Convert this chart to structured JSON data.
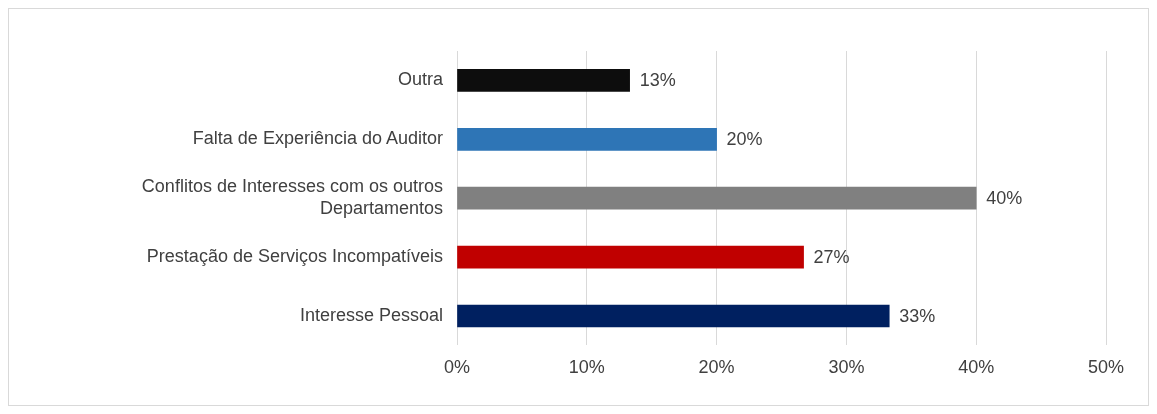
{
  "chart_data": {
    "type": "bar",
    "orientation": "horizontal",
    "categories": [
      "Outra",
      "Falta de Experiência do Auditor",
      "Conflitos de Interesses com os outros Departamentos",
      "Prestação de Serviços Incompatíveis",
      "Interesse Pessoal"
    ],
    "values": [
      13.3,
      20,
      40,
      26.7,
      33.3
    ],
    "value_labels": [
      "13%",
      "20%",
      "40%",
      "27%",
      "33%"
    ],
    "colors": [
      "#0d0d0d",
      "#2e75b6",
      "#808080",
      "#c00000",
      "#002060"
    ],
    "xlim": [
      0,
      50
    ],
    "xticks": [
      {
        "value": 0,
        "label": "0%"
      },
      {
        "value": 10,
        "label": "10%"
      },
      {
        "value": 20,
        "label": "20%"
      },
      {
        "value": 30,
        "label": "30%"
      },
      {
        "value": 40,
        "label": "40%"
      },
      {
        "value": 50,
        "label": "50%"
      }
    ],
    "grid": "x",
    "legend": false
  }
}
